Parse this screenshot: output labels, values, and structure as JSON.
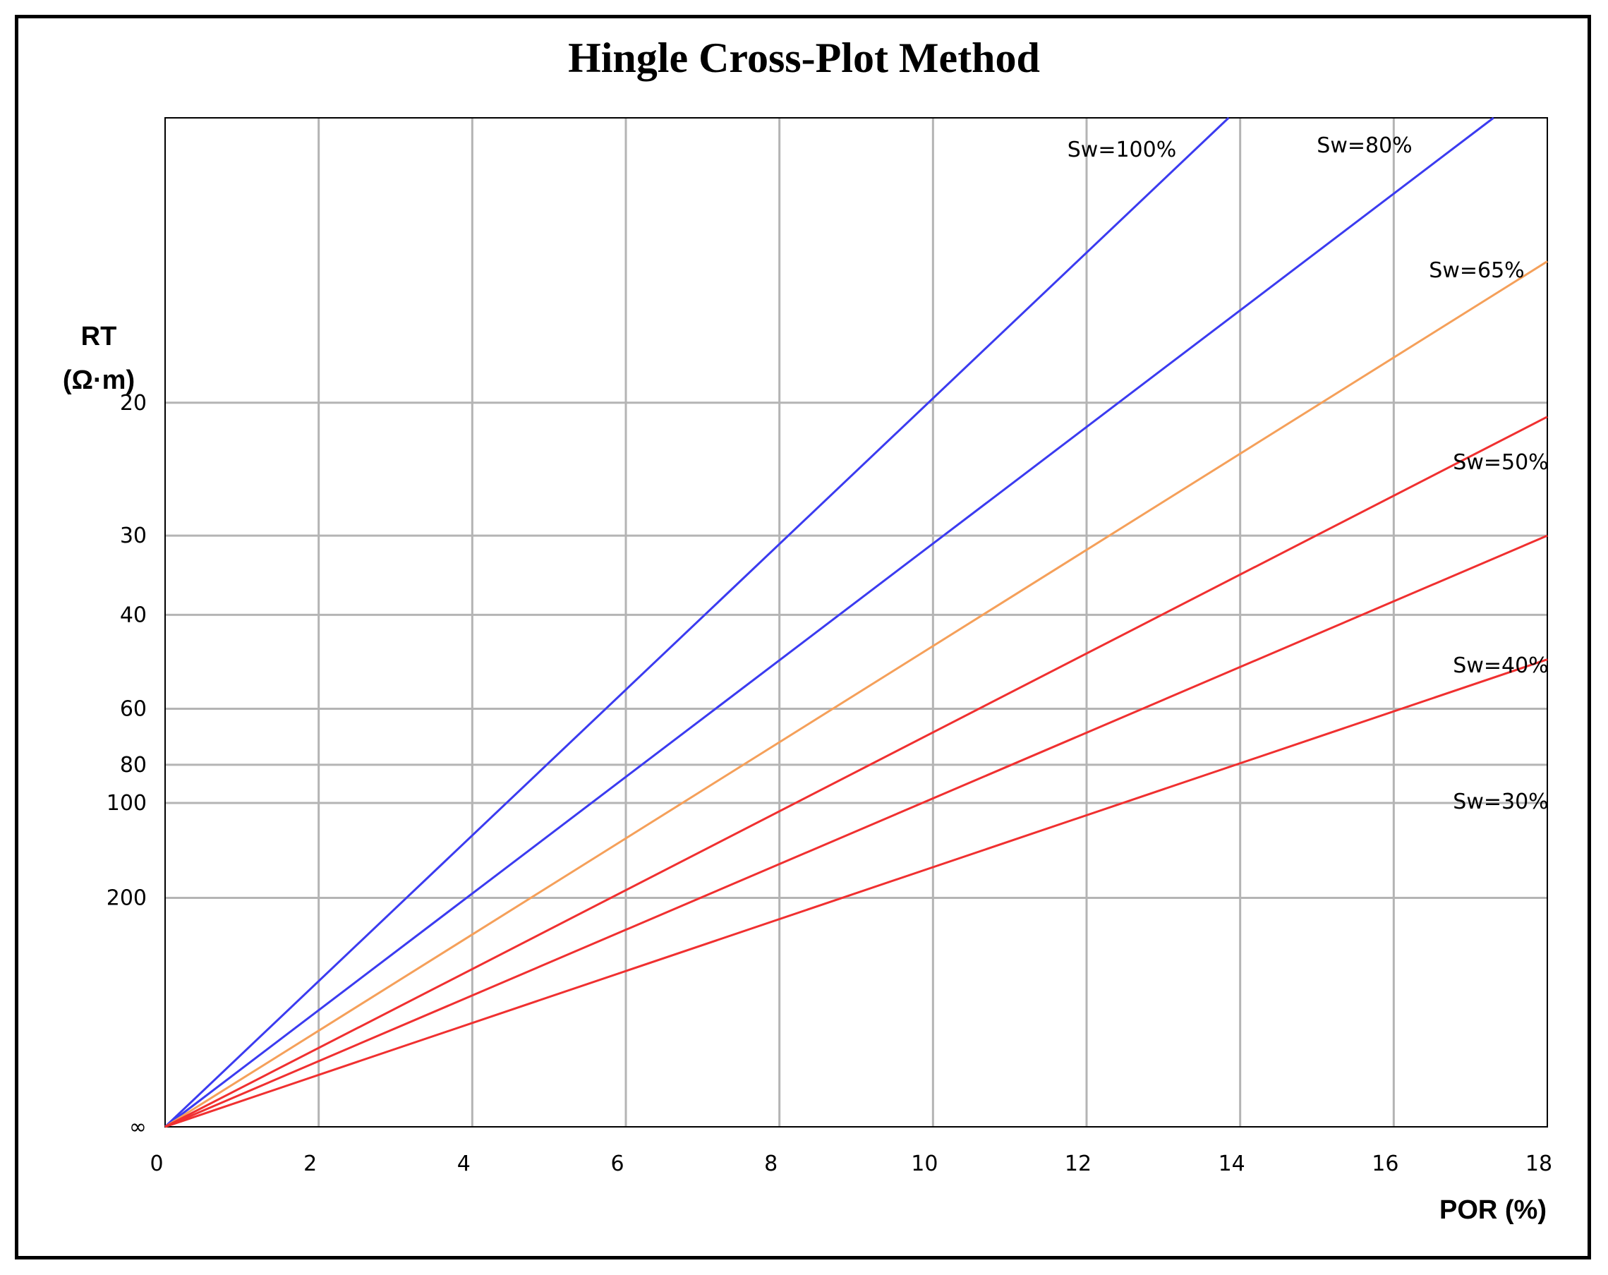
{
  "chart_data": {
    "type": "line",
    "title": "Hingle Cross-Plot Method",
    "xlabel": "POR (%)",
    "ylabel": [
      "RT",
      "(Ω·m)"
    ],
    "xlim": [
      0,
      18
    ],
    "x_ticks": [
      0,
      2,
      4,
      6,
      8,
      10,
      12,
      14,
      16,
      18
    ],
    "y_scale": "reciprocal square root (1/sqrt(RT))",
    "y_ticks": [
      {
        "value": 20,
        "label": "20"
      },
      {
        "value": 30,
        "label": "30"
      },
      {
        "value": 40,
        "label": "40"
      },
      {
        "value": 60,
        "label": "60"
      },
      {
        "value": 80,
        "label": "80"
      },
      {
        "value": 100,
        "label": "100"
      },
      {
        "value": 200,
        "label": "200"
      },
      {
        "value": "inf",
        "label": "∞"
      }
    ],
    "grid": true,
    "series": [
      {
        "name": "Sw=100%",
        "color": "#3b3bf0",
        "x": [
          0,
          13.85
        ],
        "y": [
          "inf",
          10.3
        ]
      },
      {
        "name": "Sw=80%",
        "color": "#3b3bf0",
        "x": [
          0,
          17.3
        ],
        "y": [
          "inf",
          10.3
        ]
      },
      {
        "name": "Sw=65%",
        "color": "#f5a05a",
        "x": [
          0,
          18
        ],
        "y": [
          "inf",
          14.0
        ]
      },
      {
        "name": "Sw=50%",
        "color": "#f03030",
        "x": [
          0,
          18
        ],
        "y": [
          "inf",
          20.8
        ]
      },
      {
        "name": "Sw=40%",
        "color": "#f03030",
        "x": [
          0,
          18
        ],
        "y": [
          "inf",
          30
        ]
      },
      {
        "name": "Sw=30%",
        "color": "#f03030",
        "x": [
          0,
          18
        ],
        "y": [
          "inf",
          48
        ]
      }
    ]
  }
}
